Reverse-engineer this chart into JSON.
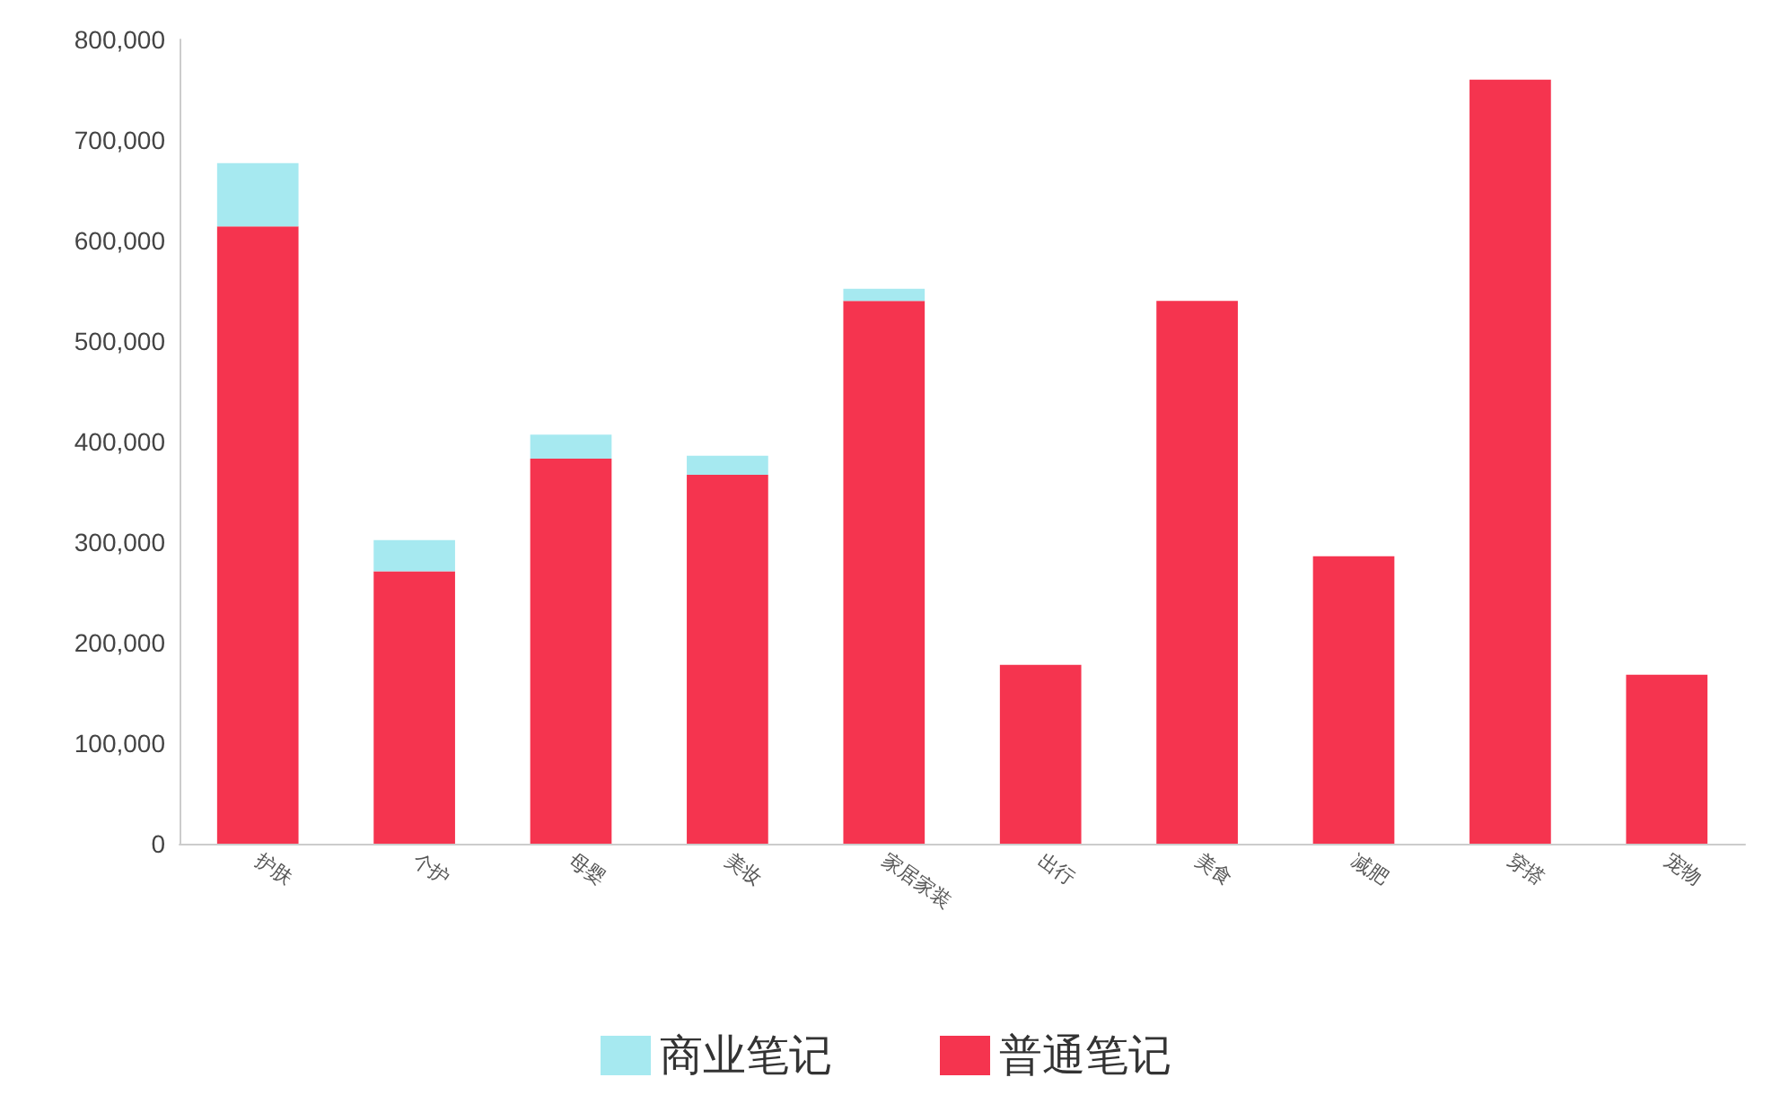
{
  "chart_data": {
    "type": "bar",
    "stacked": true,
    "categories": [
      "护肤",
      "个护",
      "母婴",
      "美妆",
      "家居家装",
      "出行",
      "美食",
      "减肥",
      "穿搭",
      "宠物"
    ],
    "series": [
      {
        "name": "普通笔记",
        "color": "#f5344f",
        "values": [
          614000,
          271000,
          383000,
          367000,
          540000,
          178000,
          540000,
          286000,
          760000,
          168000
        ]
      },
      {
        "name": "商业笔记",
        "color": "#a6e9f0",
        "values": [
          63000,
          31000,
          24000,
          19000,
          12000,
          0,
          0,
          0,
          0,
          0
        ]
      }
    ],
    "ylim": [
      0,
      800000
    ],
    "yticks": [
      0,
      {
        "value": 100000,
        "label": "100,000"
      },
      {
        "value": 200000,
        "label": "200,000"
      },
      {
        "value": 300000,
        "label": "300,000"
      },
      {
        "value": 400000,
        "label": "400,000"
      },
      {
        "value": 500000,
        "label": "500,000"
      },
      {
        "value": 600000,
        "label": "600,000"
      },
      {
        "value": 700000,
        "label": "700,000"
      },
      {
        "value": 800000,
        "label": "800,000"
      }
    ],
    "grid": false,
    "legend": "bottom"
  }
}
